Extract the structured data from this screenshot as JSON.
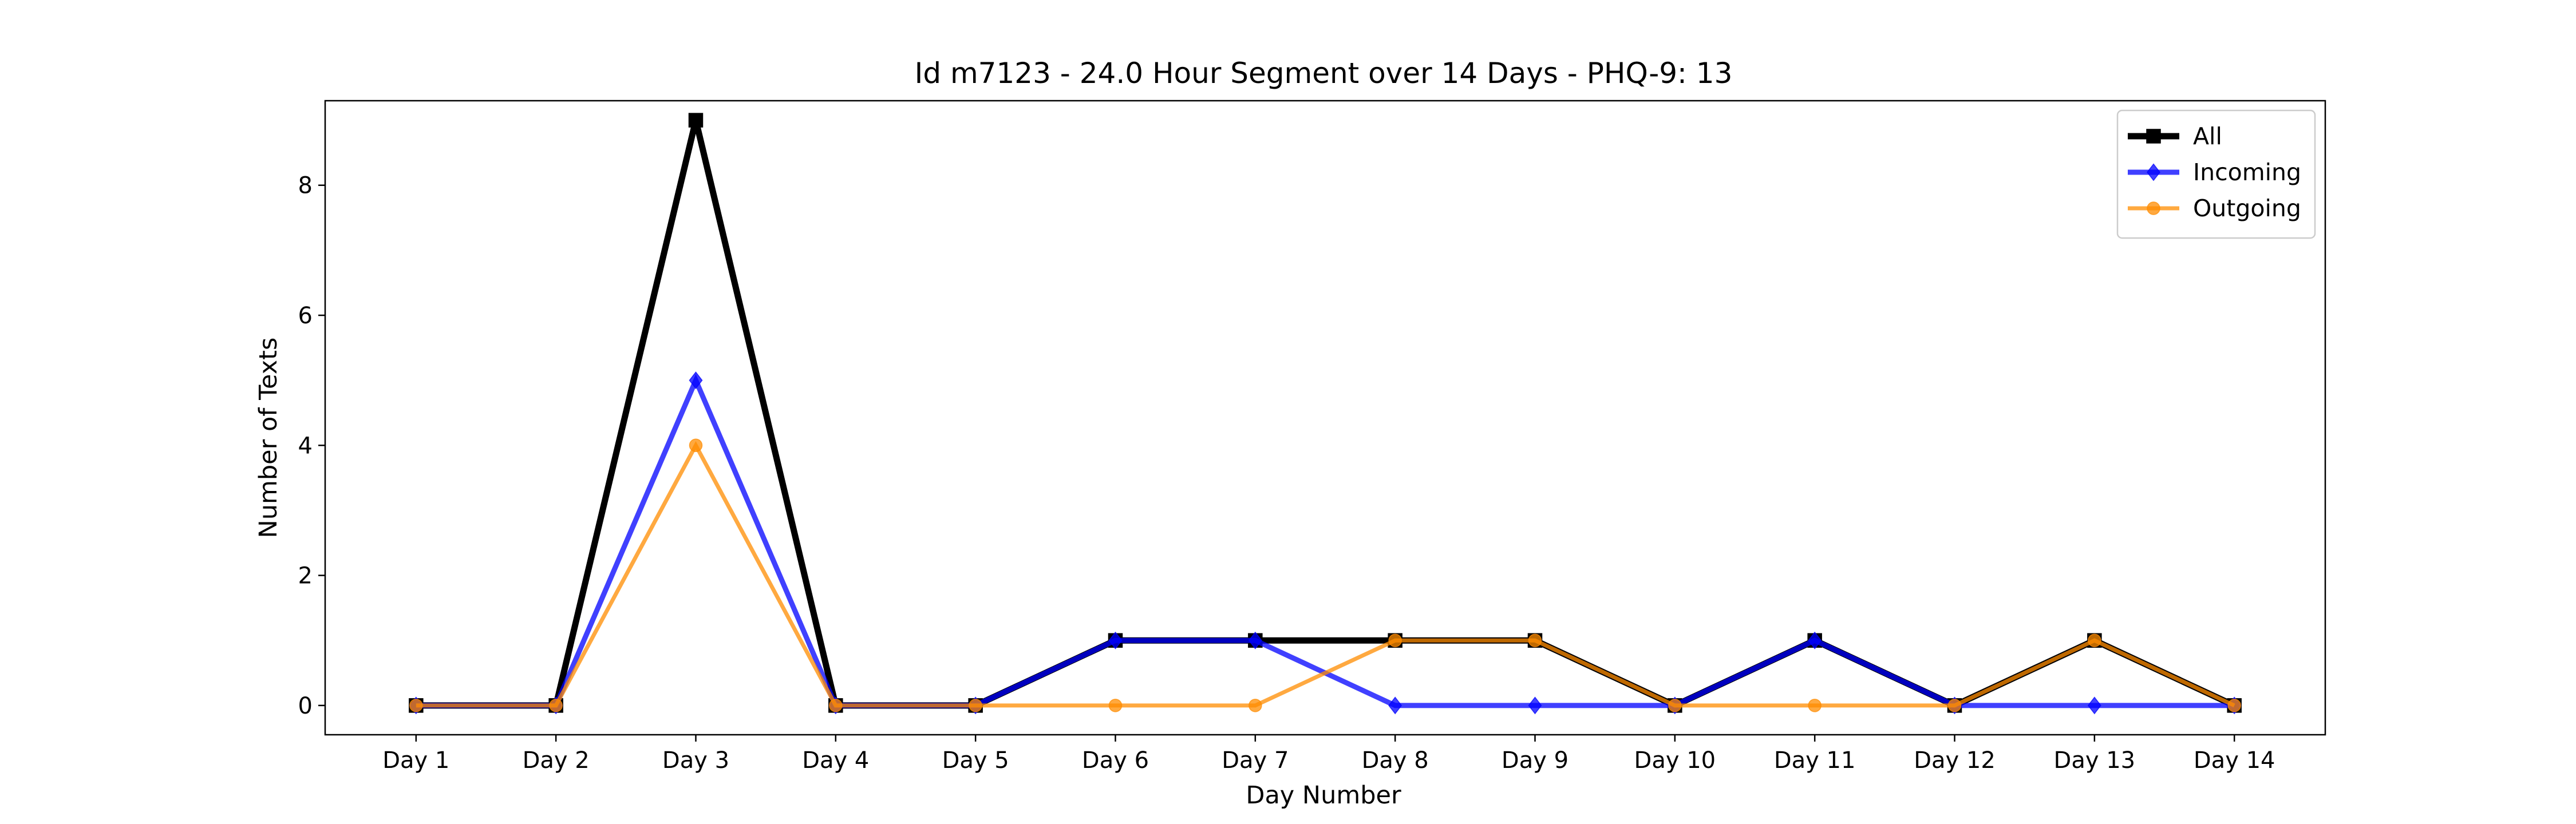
{
  "chart_data": {
    "type": "line",
    "title": "Id m7123 - 24.0 Hour Segment over 14 Days - PHQ-9: 13",
    "xlabel": "Day Number",
    "ylabel": "Number of Texts",
    "categories": [
      "Day 1",
      "Day 2",
      "Day 3",
      "Day 4",
      "Day 5",
      "Day 6",
      "Day 7",
      "Day 8",
      "Day 9",
      "Day 10",
      "Day 11",
      "Day 12",
      "Day 13",
      "Day 14"
    ],
    "ylim": [
      -0.45,
      9.3
    ],
    "yticks": [
      0,
      2,
      4,
      6,
      8
    ],
    "grid": false,
    "legend_position": "top-right",
    "series": [
      {
        "name": "All",
        "color": "#000000",
        "marker": "square",
        "values": [
          0,
          0,
          9,
          0,
          0,
          1,
          1,
          1,
          1,
          0,
          1,
          0,
          1,
          0
        ]
      },
      {
        "name": "Incoming",
        "color": "#0000ff",
        "marker": "diamond",
        "values": [
          0,
          0,
          5,
          0,
          0,
          1,
          1,
          0,
          0,
          0,
          1,
          0,
          0,
          0
        ]
      },
      {
        "name": "Outgoing",
        "color": "#ff8c00",
        "marker": "circle",
        "values": [
          0,
          0,
          4,
          0,
          0,
          0,
          0,
          1,
          1,
          0,
          0,
          0,
          1,
          0
        ]
      }
    ]
  }
}
